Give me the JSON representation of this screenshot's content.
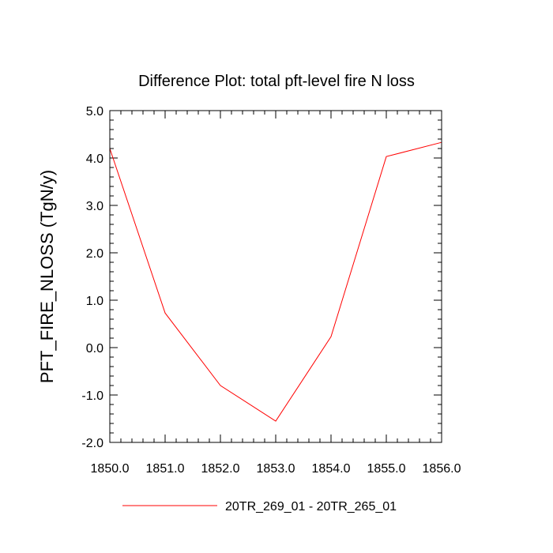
{
  "chart_data": {
    "type": "line",
    "title": "Difference Plot: total pft-level fire N loss",
    "xlabel": "",
    "ylabel": "PFT_FIRE_NLOSS  (TgN/y)",
    "xlim": [
      1850,
      1856
    ],
    "ylim": [
      -2,
      5
    ],
    "x_tick_labels": [
      "1850.0",
      "1851.0",
      "1852.0",
      "1853.0",
      "1854.0",
      "1855.0",
      "1856.0"
    ],
    "y_tick_labels": [
      "-2.0",
      "-1.0",
      "0.0",
      "1.0",
      "2.0",
      "3.0",
      "4.0",
      "5.0"
    ],
    "x_minor_step": 0.2,
    "y_minor_step": 0.2,
    "grid": false,
    "legend_position": "bottom",
    "series": [
      {
        "name": "20TR_269_01 - 20TR_265_01",
        "color": "#ff0000",
        "x": [
          1850,
          1851,
          1852,
          1853,
          1854,
          1855,
          1856
        ],
        "y": [
          4.2,
          0.73,
          -0.8,
          -1.55,
          0.23,
          4.03,
          4.33
        ]
      }
    ]
  }
}
